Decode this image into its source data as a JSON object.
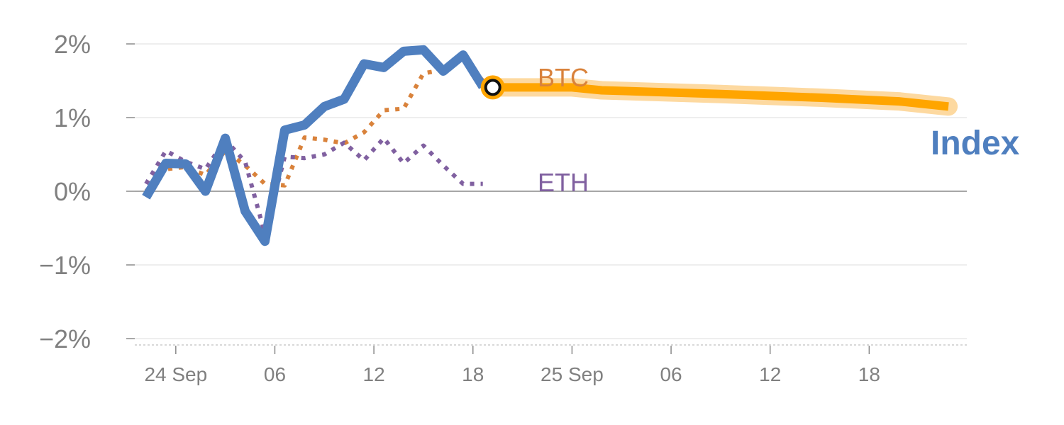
{
  "chart_data": {
    "type": "line",
    "title": "",
    "xlabel": "",
    "ylabel": "",
    "ylim": [
      -2,
      2
    ],
    "y_ticks": [
      {
        "value": 2,
        "label": "2%"
      },
      {
        "value": 1,
        "label": "1%"
      },
      {
        "value": 0,
        "label": "0%"
      },
      {
        "value": -1,
        "label": "−1%"
      },
      {
        "value": -2,
        "label": "−2%"
      }
    ],
    "x_ticks": [
      {
        "value": 5,
        "label": "24 Sep"
      },
      {
        "value": 15,
        "label": "06"
      },
      {
        "value": 25,
        "label": "12"
      },
      {
        "value": 35,
        "label": "18"
      },
      {
        "value": 45,
        "label": "25 Sep"
      },
      {
        "value": 55,
        "label": "06"
      },
      {
        "value": 65,
        "label": "12"
      },
      {
        "value": 75,
        "label": "18"
      }
    ],
    "xlim": [
      0,
      85
    ],
    "grid": true,
    "series": [
      {
        "name": "Index",
        "color": "#4f7fbf",
        "style": "solid",
        "x": [
          2,
          4,
          6,
          8,
          10,
          12,
          14,
          16,
          18,
          20,
          22,
          24,
          26,
          28,
          30,
          32,
          34,
          36
        ],
        "y": [
          -0.08,
          0.38,
          0.37,
          0.0,
          0.72,
          -0.27,
          -0.68,
          0.83,
          0.9,
          1.15,
          1.25,
          1.73,
          1.68,
          1.9,
          1.92,
          1.63,
          1.85,
          1.42
        ],
        "xx": [
          2,
          4,
          6,
          7,
          9,
          11,
          12,
          13,
          14,
          15,
          16,
          17,
          18,
          19,
          20,
          21,
          22,
          23,
          24,
          25,
          26,
          27,
          28,
          29,
          30,
          31,
          32,
          33,
          34,
          35,
          36,
          37
        ]
      },
      {
        "name": "BTC",
        "color": "#d9823b",
        "style": "dotted"
      },
      {
        "name": "ETH",
        "color": "#8060a0",
        "style": "dotted"
      }
    ]
  },
  "labels": {
    "btc": "BTC",
    "eth": "ETH",
    "index": "Index"
  }
}
